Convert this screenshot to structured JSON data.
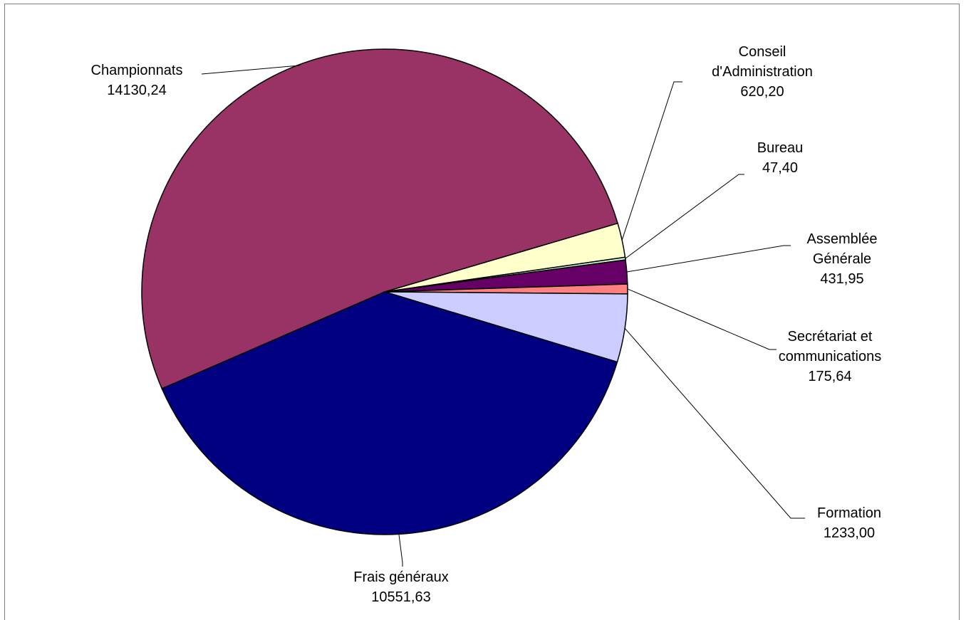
{
  "chart_data": {
    "type": "pie",
    "title": "",
    "slices": [
      {
        "name_lines": [
          "Championnats"
        ],
        "value_label": "14130,24",
        "value": 14130.24,
        "color": "#993366"
      },
      {
        "name_lines": [
          "Conseil",
          "d'Administration"
        ],
        "value_label": "620,20",
        "value": 620.2,
        "color": "#ffffcc"
      },
      {
        "name_lines": [
          "Bureau"
        ],
        "value_label": "47,40",
        "value": 47.4,
        "color": "#ccffcc"
      },
      {
        "name_lines": [
          "Assemblée",
          "Générale"
        ],
        "value_label": "431,95",
        "value": 431.95,
        "color": "#660066"
      },
      {
        "name_lines": [
          "Secrétariat et",
          "communications"
        ],
        "value_label": "175,64",
        "value": 175.64,
        "color": "#ff8080"
      },
      {
        "name_lines": [
          "Formation"
        ],
        "value_label": "1233,00",
        "value": 1233.0,
        "color": "#ccccff"
      },
      {
        "name_lines": [
          "Frais généraux"
        ],
        "value_label": "10551,63",
        "value": 10551.63,
        "color": "#000080"
      }
    ],
    "legend": "none"
  }
}
